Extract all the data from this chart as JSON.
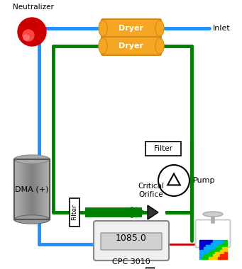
{
  "title": "",
  "fig_width": 3.41,
  "fig_height": 3.8,
  "bg_color": "#ffffff",
  "blue_color": "#1e90ff",
  "green_color": "#008000",
  "red_color": "#cc0000",
  "dryer_color": "#f5a623",
  "dryer_border": "#d4891a",
  "dma_gray": "#aaaaaa",
  "dma_dark": "#666666",
  "neutralizer_red": "#cc0000",
  "neutralizer_dark": "#880000",
  "labels": {
    "neutralizer": "Neutralizer",
    "inlet": "Inlet",
    "dryer1": "Dryer",
    "dryer2": "Dryer",
    "dma": "DMA (+)",
    "filter_top": "Filter",
    "pump": "Pump",
    "filter_bottom": "Filter",
    "critical_orifice": "Critical\nOrifice",
    "cpc_value": "1085.0",
    "cpc_name": "CPC 3010"
  }
}
